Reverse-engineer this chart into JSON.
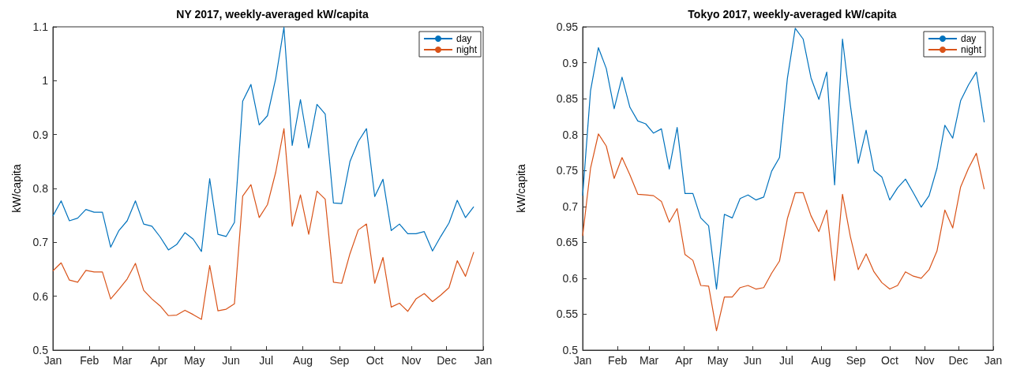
{
  "chart_data": [
    {
      "type": "line",
      "title": "NY 2017, weekly-averaged kW/capita",
      "ylabel": "kW/capita",
      "x": [
        "2017-01-01",
        "2017-01-08",
        "2017-01-15",
        "2017-01-22",
        "2017-01-29",
        "2017-02-05",
        "2017-02-12",
        "2017-02-19",
        "2017-02-26",
        "2017-03-05",
        "2017-03-12",
        "2017-03-19",
        "2017-03-26",
        "2017-04-02",
        "2017-04-09",
        "2017-04-16",
        "2017-04-23",
        "2017-04-30",
        "2017-05-07",
        "2017-05-14",
        "2017-05-21",
        "2017-05-28",
        "2017-06-04",
        "2017-06-11",
        "2017-06-18",
        "2017-06-25",
        "2017-07-02",
        "2017-07-09",
        "2017-07-16",
        "2017-07-23",
        "2017-07-30",
        "2017-08-06",
        "2017-08-13",
        "2017-08-20",
        "2017-08-27",
        "2017-09-03",
        "2017-09-10",
        "2017-09-17",
        "2017-09-24",
        "2017-10-01",
        "2017-10-08",
        "2017-10-15",
        "2017-10-22",
        "2017-10-29",
        "2017-11-05",
        "2017-11-12",
        "2017-11-19",
        "2017-11-26",
        "2017-12-03",
        "2017-12-10",
        "2017-12-17",
        "2017-12-24"
      ],
      "series": [
        {
          "name": "day",
          "color": "#0072bd",
          "values": [
            0.749,
            0.777,
            0.74,
            0.745,
            0.761,
            0.756,
            0.756,
            0.691,
            0.722,
            0.74,
            0.777,
            0.734,
            0.73,
            0.71,
            0.686,
            0.696,
            0.718,
            0.706,
            0.683,
            0.818,
            0.715,
            0.711,
            0.737,
            0.962,
            0.993,
            0.918,
            0.935,
            1.004,
            1.099,
            0.88,
            0.965,
            0.875,
            0.956,
            0.938,
            0.773,
            0.772,
            0.85,
            0.887,
            0.911,
            0.785,
            0.817,
            0.722,
            0.734,
            0.716,
            0.716,
            0.72,
            0.684,
            0.711,
            0.736,
            0.778,
            0.746,
            0.766
          ]
        },
        {
          "name": "night",
          "color": "#d95319",
          "values": [
            0.647,
            0.662,
            0.63,
            0.626,
            0.648,
            0.645,
            0.645,
            0.595,
            0.613,
            0.632,
            0.661,
            0.611,
            0.595,
            0.582,
            0.564,
            0.565,
            0.574,
            0.566,
            0.557,
            0.657,
            0.573,
            0.576,
            0.586,
            0.786,
            0.807,
            0.746,
            0.77,
            0.83,
            0.911,
            0.73,
            0.788,
            0.715,
            0.795,
            0.78,
            0.626,
            0.624,
            0.679,
            0.723,
            0.734,
            0.624,
            0.672,
            0.58,
            0.587,
            0.572,
            0.595,
            0.605,
            0.59,
            0.602,
            0.616,
            0.666,
            0.637,
            0.682
          ]
        }
      ],
      "xlim": [
        "2017-01-01",
        "2018-01-01"
      ],
      "xticks": [
        {
          "value": "2017-01-01",
          "label": "Jan"
        },
        {
          "value": "2017-02-01",
          "label": "Feb"
        },
        {
          "value": "2017-03-01",
          "label": "Mar"
        },
        {
          "value": "2017-04-01",
          "label": "Apr"
        },
        {
          "value": "2017-05-01",
          "label": "May"
        },
        {
          "value": "2017-06-01",
          "label": "Jun"
        },
        {
          "value": "2017-07-01",
          "label": "Jul"
        },
        {
          "value": "2017-08-01",
          "label": "Aug"
        },
        {
          "value": "2017-09-01",
          "label": "Sep"
        },
        {
          "value": "2017-10-01",
          "label": "Oct"
        },
        {
          "value": "2017-11-01",
          "label": "Nov"
        },
        {
          "value": "2017-12-01",
          "label": "Dec"
        },
        {
          "value": "2018-01-01",
          "label": "Jan"
        }
      ],
      "ylim": [
        0.5,
        1.1
      ],
      "yticks": [
        0.5,
        0.6,
        0.7,
        0.8,
        0.9,
        1,
        1.1
      ],
      "grid": false,
      "legend": "top right"
    },
    {
      "type": "line",
      "title": "Tokyo 2017, weekly-averaged kW/capita",
      "ylabel": "kW/capita",
      "x": [
        "2017-01-01",
        "2017-01-08",
        "2017-01-15",
        "2017-01-22",
        "2017-01-29",
        "2017-02-05",
        "2017-02-12",
        "2017-02-19",
        "2017-02-26",
        "2017-03-05",
        "2017-03-12",
        "2017-03-19",
        "2017-03-26",
        "2017-04-02",
        "2017-04-09",
        "2017-04-16",
        "2017-04-23",
        "2017-04-30",
        "2017-05-07",
        "2017-05-14",
        "2017-05-21",
        "2017-05-28",
        "2017-06-04",
        "2017-06-11",
        "2017-06-18",
        "2017-06-25",
        "2017-07-02",
        "2017-07-09",
        "2017-07-16",
        "2017-07-23",
        "2017-07-30",
        "2017-08-06",
        "2017-08-13",
        "2017-08-20",
        "2017-08-27",
        "2017-09-03",
        "2017-09-10",
        "2017-09-17",
        "2017-09-24",
        "2017-10-01",
        "2017-10-08",
        "2017-10-15",
        "2017-10-22",
        "2017-10-29",
        "2017-11-05",
        "2017-11-12",
        "2017-11-19",
        "2017-11-26",
        "2017-12-03",
        "2017-12-10",
        "2017-12-17",
        "2017-12-24"
      ],
      "series": [
        {
          "name": "day",
          "color": "#0072bd",
          "values": [
            0.715,
            0.861,
            0.921,
            0.892,
            0.836,
            0.88,
            0.838,
            0.819,
            0.815,
            0.802,
            0.808,
            0.752,
            0.81,
            0.718,
            0.718,
            0.684,
            0.673,
            0.585,
            0.689,
            0.684,
            0.711,
            0.716,
            0.709,
            0.713,
            0.749,
            0.768,
            0.878,
            0.948,
            0.933,
            0.879,
            0.849,
            0.887,
            0.73,
            0.933,
            0.841,
            0.76,
            0.806,
            0.75,
            0.741,
            0.709,
            0.726,
            0.738,
            0.719,
            0.699,
            0.715,
            0.753,
            0.813,
            0.795,
            0.847,
            0.869,
            0.887,
            0.817
          ]
        },
        {
          "name": "night",
          "color": "#d95319",
          "values": [
            0.659,
            0.753,
            0.801,
            0.784,
            0.739,
            0.768,
            0.744,
            0.717,
            0.716,
            0.715,
            0.707,
            0.678,
            0.697,
            0.633,
            0.625,
            0.59,
            0.589,
            0.527,
            0.574,
            0.574,
            0.587,
            0.59,
            0.585,
            0.587,
            0.607,
            0.624,
            0.683,
            0.719,
            0.719,
            0.687,
            0.665,
            0.695,
            0.597,
            0.717,
            0.658,
            0.612,
            0.634,
            0.609,
            0.594,
            0.585,
            0.59,
            0.609,
            0.603,
            0.6,
            0.612,
            0.638,
            0.695,
            0.67,
            0.727,
            0.753,
            0.774,
            0.724
          ]
        }
      ],
      "xlim": [
        "2017-01-01",
        "2018-01-01"
      ],
      "xticks": [
        {
          "value": "2017-01-01",
          "label": "Jan"
        },
        {
          "value": "2017-02-01",
          "label": "Feb"
        },
        {
          "value": "2017-03-01",
          "label": "Mar"
        },
        {
          "value": "2017-04-01",
          "label": "Apr"
        },
        {
          "value": "2017-05-01",
          "label": "May"
        },
        {
          "value": "2017-06-01",
          "label": "Jun"
        },
        {
          "value": "2017-07-01",
          "label": "Jul"
        },
        {
          "value": "2017-08-01",
          "label": "Aug"
        },
        {
          "value": "2017-09-01",
          "label": "Sep"
        },
        {
          "value": "2017-10-01",
          "label": "Oct"
        },
        {
          "value": "2017-11-01",
          "label": "Nov"
        },
        {
          "value": "2017-12-01",
          "label": "Dec"
        },
        {
          "value": "2018-01-01",
          "label": "Jan"
        }
      ],
      "ylim": [
        0.5,
        0.95
      ],
      "yticks": [
        0.5,
        0.55,
        0.6,
        0.65,
        0.7,
        0.75,
        0.8,
        0.85,
        0.9,
        0.95
      ],
      "grid": false,
      "legend": "top right"
    }
  ]
}
